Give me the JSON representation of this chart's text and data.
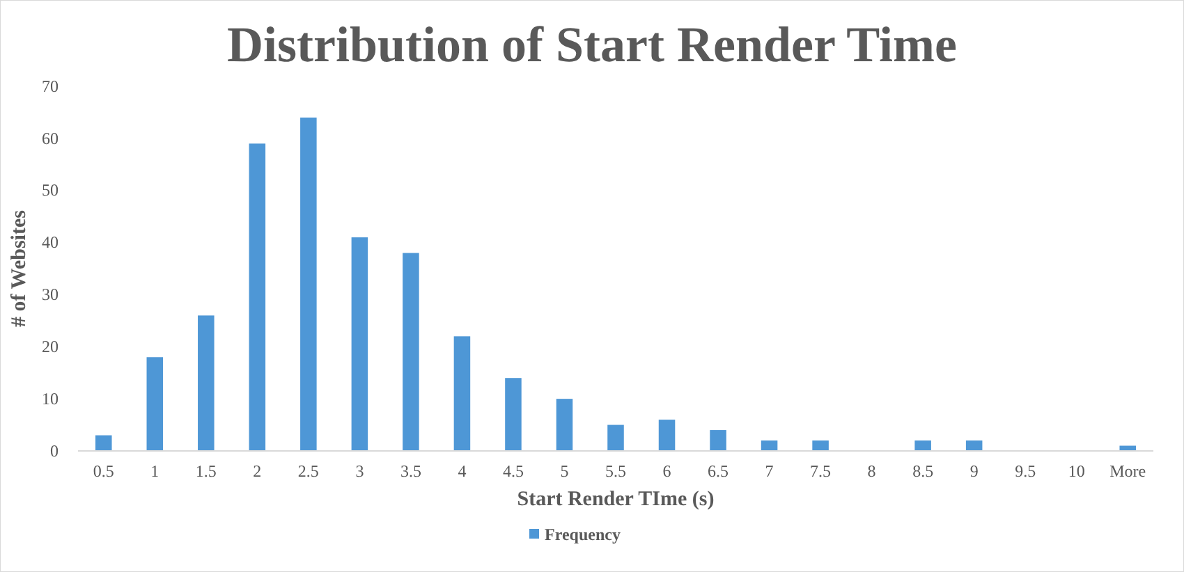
{
  "chart_data": {
    "type": "bar",
    "title": "Distribution of Start Render Time",
    "xlabel": "Start Render TIme (s)",
    "ylabel": "# of Websites",
    "categories": [
      "0.5",
      "1",
      "1.5",
      "2",
      "2.5",
      "3",
      "3.5",
      "4",
      "4.5",
      "5",
      "5.5",
      "6",
      "6.5",
      "7",
      "7.5",
      "8",
      "8.5",
      "9",
      "9.5",
      "10",
      "More"
    ],
    "series": [
      {
        "name": "Frequency",
        "color": "#4e97d6",
        "values": [
          3,
          18,
          26,
          59,
          64,
          41,
          38,
          22,
          14,
          10,
          5,
          6,
          4,
          2,
          2,
          0,
          2,
          2,
          0,
          0,
          1
        ]
      }
    ],
    "ylim": [
      0,
      70
    ],
    "yticks": [
      0,
      10,
      20,
      30,
      40,
      50,
      60,
      70
    ],
    "grid": false,
    "legend": "bottom"
  }
}
